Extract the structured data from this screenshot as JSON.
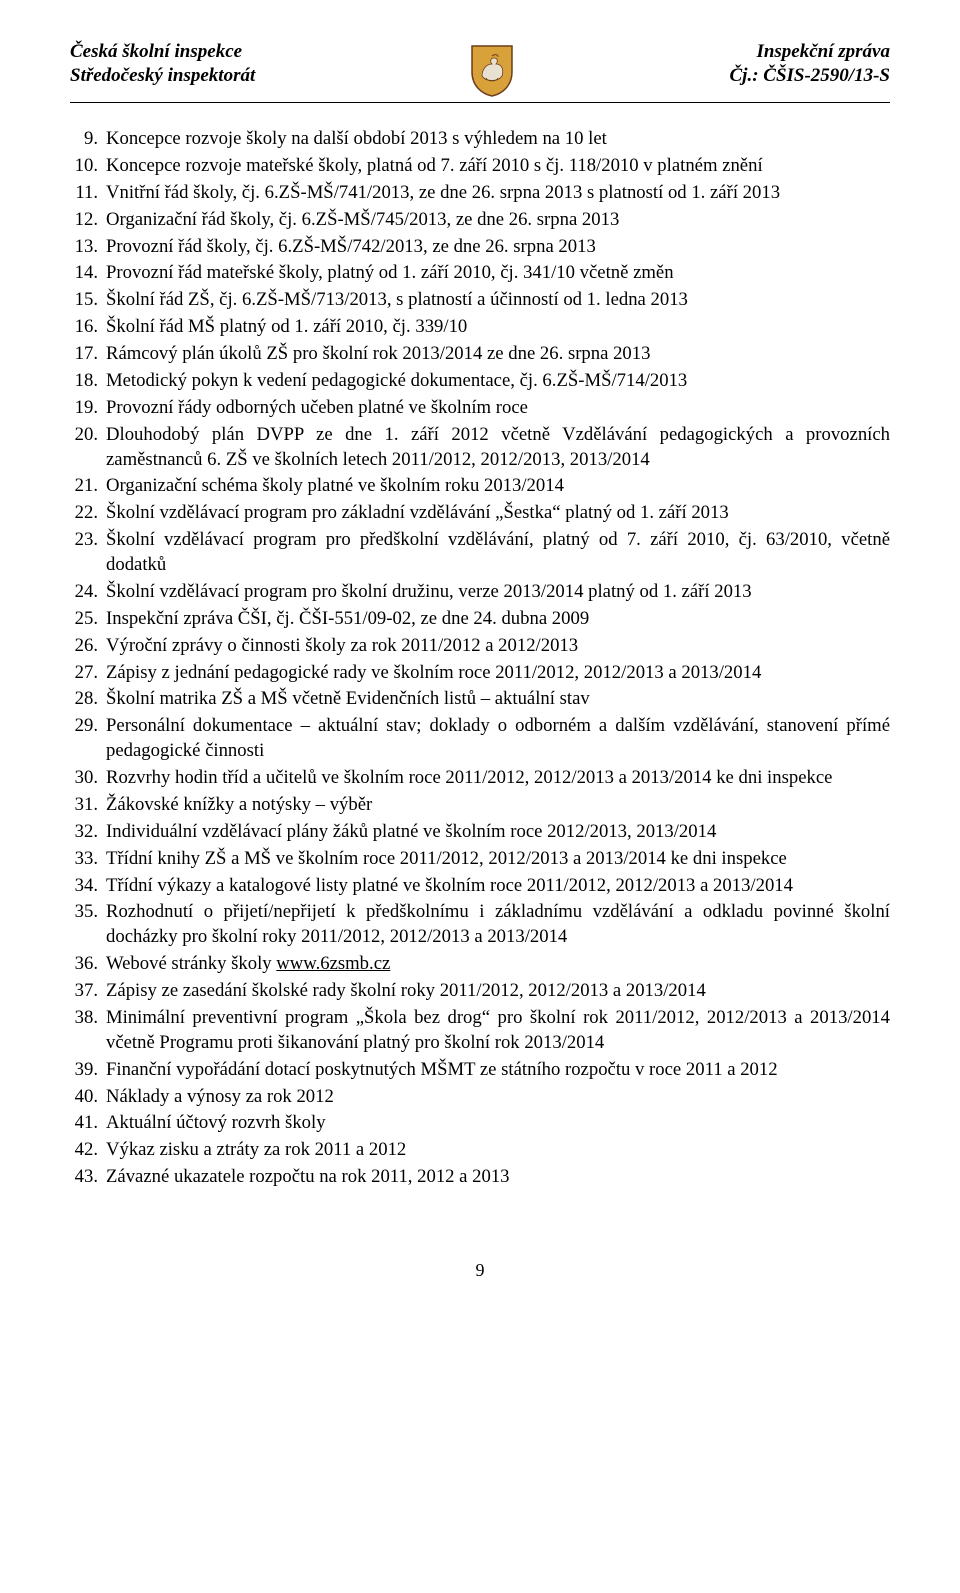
{
  "header": {
    "left_line1": "Česká školní inspekce",
    "left_line2": "Středočeský inspektorát",
    "right_line1": "Inspekční zpráva",
    "right_line2": "Čj.: ČŠIS-2590/13-S"
  },
  "emblem": {
    "shield_fill": "#d8a13a",
    "lion_fill": "#e8e0d0",
    "outline": "#6b3e1a"
  },
  "list": [
    {
      "n": "9.",
      "t": "Koncepce rozvoje školy na další období 2013 s výhledem na 10 let"
    },
    {
      "n": "10.",
      "t": "Koncepce rozvoje mateřské školy, platná od 7. září 2010 s čj. 118/2010 v platném znění"
    },
    {
      "n": "11.",
      "t": "Vnitřní řád školy, čj. 6.ZŠ-MŠ/741/2013, ze dne 26. srpna 2013 s platností od 1. září 2013"
    },
    {
      "n": "12.",
      "t": "Organizační řád školy, čj. 6.ZŠ-MŠ/745/2013, ze dne 26. srpna 2013"
    },
    {
      "n": "13.",
      "t": "Provozní řád školy, čj. 6.ZŠ-MŠ/742/2013, ze dne 26. srpna 2013"
    },
    {
      "n": "14.",
      "t": "Provozní řád mateřské školy, platný od 1. září 2010, čj. 341/10 včetně změn"
    },
    {
      "n": "15.",
      "t": " Školní řád ZŠ, čj. 6.ZŠ-MŠ/713/2013, s platností a účinností od 1. ledna 2013"
    },
    {
      "n": "16.",
      "t": "Školní řád MŠ platný od 1. září 2010, čj. 339/10"
    },
    {
      "n": "17.",
      "t": "Rámcový plán úkolů ZŠ pro školní rok 2013/2014 ze dne 26. srpna 2013"
    },
    {
      "n": "18.",
      "t": "Metodický pokyn k vedení pedagogické dokumentace, čj. 6.ZŠ-MŠ/714/2013"
    },
    {
      "n": "19.",
      "t": "Provozní řády odborných učeben platné ve školním roce"
    },
    {
      "n": "20.",
      "t": "Dlouhodobý plán DVPP ze dne 1. září 2012 včetně Vzdělávání pedagogických a provozních zaměstnanců 6. ZŠ ve školních letech 2011/2012, 2012/2013, 2013/2014"
    },
    {
      "n": "21.",
      "t": "Organizační schéma školy platné ve školním roku 2013/2014"
    },
    {
      "n": "22.",
      "t": "Školní vzdělávací program pro základní vzdělávání „Šestka“ platný od 1. září 2013"
    },
    {
      "n": "23.",
      "t": "Školní vzdělávací program pro předškolní vzdělávání, platný od 7. září 2010, čj. 63/2010, včetně dodatků"
    },
    {
      "n": "24.",
      "t": "Školní vzdělávací program pro školní družinu, verze 2013/2014 platný od 1. září 2013"
    },
    {
      "n": "25.",
      "t": "Inspekční zpráva ČŠI, čj. ČŠI-551/09-02, ze dne 24. dubna 2009"
    },
    {
      "n": "26.",
      "t": "Výroční zprávy o činnosti školy za rok 2011/2012 a 2012/2013"
    },
    {
      "n": "27.",
      "t": "Zápisy z jednání pedagogické rady ve školním roce 2011/2012, 2012/2013 a 2013/2014"
    },
    {
      "n": "28.",
      "t": "Školní matrika ZŠ a MŠ včetně Evidenčních listů – aktuální stav"
    },
    {
      "n": "29.",
      "t": "Personální dokumentace – aktuální stav; doklady o odborném a dalším vzdělávání, stanovení přímé pedagogické činnosti"
    },
    {
      "n": "30.",
      "t": "Rozvrhy hodin tříd a učitelů ve školním roce 2011/2012, 2012/2013 a 2013/2014 ke dni inspekce"
    },
    {
      "n": "31.",
      "t": "Žákovské knížky a notýsky – výběr"
    },
    {
      "n": "32.",
      "t": "Individuální vzdělávací plány žáků platné ve školním roce 2012/2013, 2013/2014"
    },
    {
      "n": "33.",
      "t": "Třídní knihy ZŠ a MŠ ve školním roce 2011/2012, 2012/2013 a 2013/2014 ke dni inspekce"
    },
    {
      "n": "34.",
      "t": "Třídní výkazy a katalogové listy platné ve školním roce 2011/2012, 2012/2013 a 2013/2014"
    },
    {
      "n": "35.",
      "t": "Rozhodnutí o přijetí/nepřijetí k předškolnímu i základnímu vzdělávání a odkladu povinné školní docházky pro školní roky 2011/2012, 2012/2013 a 2013/2014"
    },
    {
      "n": "36.",
      "t_pre": "Webové stránky školy ",
      "link": "www.6zsmb.cz"
    },
    {
      "n": "37.",
      "t": "Zápisy ze zasedání školské rady školní roky 2011/2012, 2012/2013 a 2013/2014"
    },
    {
      "n": "38.",
      "t": "Minimální preventivní program „Škola bez drog“ pro školní rok 2011/2012, 2012/2013 a 2013/2014 včetně Programu proti šikanování platný pro školní rok 2013/2014"
    },
    {
      "n": "39.",
      "t": "Finanční vypořádání dotací poskytnutých MŠMT ze státního rozpočtu v roce 2011 a 2012"
    },
    {
      "n": "40.",
      "t": "Náklady a výnosy za rok 2012"
    },
    {
      "n": "41.",
      "t": "Aktuální účtový rozvrh školy"
    },
    {
      "n": "42.",
      "t": "Výkaz zisku a ztráty za rok 2011 a 2012"
    },
    {
      "n": "43.",
      "t": "Závazné ukazatele rozpočtu na rok 2011, 2012 a 2013"
    }
  ],
  "footer": {
    "page_number": "9"
  }
}
